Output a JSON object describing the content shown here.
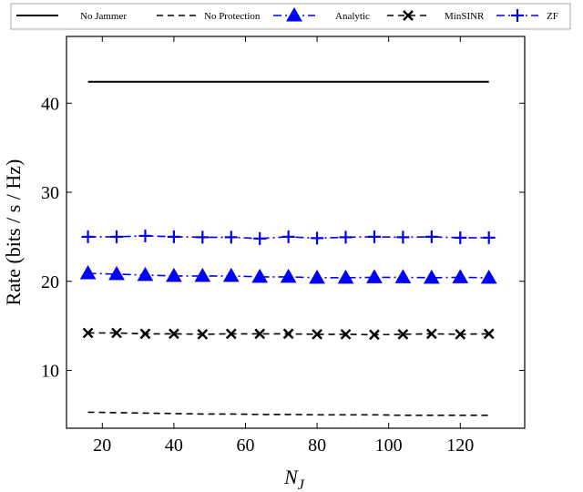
{
  "chart_data": {
    "type": "line",
    "xlabel": "N",
    "xlabel_sub": "J",
    "ylabel": "Rate (bits / s / Hz)",
    "xlim": [
      10,
      138
    ],
    "ylim": [
      3.5,
      47.5
    ],
    "xticks": [
      20,
      40,
      60,
      80,
      100,
      120
    ],
    "yticks": [
      10,
      20,
      30,
      40
    ],
    "grid": false,
    "legend_position": "top",
    "x": [
      16,
      24,
      32,
      40,
      48,
      56,
      64,
      72,
      80,
      88,
      96,
      104,
      112,
      120,
      128
    ],
    "series": [
      {
        "name": "No Jammer",
        "style": "solid",
        "marker": "none",
        "color": "#000000",
        "values": [
          42.4,
          42.4,
          42.4,
          42.4,
          42.4,
          42.4,
          42.4,
          42.4,
          42.4,
          42.4,
          42.4,
          42.4,
          42.4,
          42.4,
          42.4
        ]
      },
      {
        "name": "No Protection",
        "style": "dashed",
        "marker": "none",
        "color": "#000000",
        "values": [
          5.3,
          5.25,
          5.2,
          5.15,
          5.1,
          5.1,
          5.05,
          5.05,
          5.0,
          5.0,
          5.0,
          4.95,
          4.95,
          4.95,
          4.95
        ]
      },
      {
        "name": "Analytic",
        "style": "dashdot",
        "marker": "triangle",
        "color": "#0000ff",
        "values": [
          20.9,
          20.8,
          20.7,
          20.6,
          20.6,
          20.6,
          20.5,
          20.5,
          20.4,
          20.4,
          20.45,
          20.45,
          20.4,
          20.45,
          20.4
        ]
      },
      {
        "name": "MinSINR",
        "style": "dashed",
        "marker": "x",
        "color": "#000000",
        "values": [
          14.2,
          14.2,
          14.1,
          14.1,
          14.05,
          14.1,
          14.1,
          14.1,
          14.05,
          14.05,
          14.0,
          14.05,
          14.1,
          14.05,
          14.1
        ]
      },
      {
        "name": "ZF",
        "style": "dashdot",
        "marker": "plus",
        "color": "#0000ff",
        "values": [
          25.0,
          25.0,
          25.1,
          25.0,
          24.95,
          24.95,
          24.8,
          25.0,
          24.85,
          24.95,
          25.0,
          24.95,
          25.0,
          24.9,
          24.9
        ]
      }
    ]
  }
}
